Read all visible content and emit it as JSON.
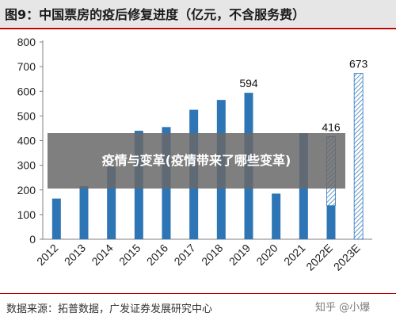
{
  "header": {
    "title": "图9：中国票房的疫后修复进度（亿元，不含服务费）"
  },
  "chart_data": {
    "type": "bar",
    "categories": [
      "2012",
      "2013",
      "2014",
      "2015",
      "2016",
      "2017",
      "2018",
      "2019",
      "2020",
      "2021",
      "2022E",
      "2023E"
    ],
    "values": [
      165,
      215,
      295,
      440,
      455,
      525,
      565,
      594,
      185,
      430,
      136,
      673
    ],
    "estimated_tail": {
      "2022E": 416
    },
    "data_labels": [
      {
        "category": "2019",
        "text": "594"
      },
      {
        "category": "2022E",
        "text": "416"
      },
      {
        "category": "2023E",
        "text": "673"
      }
    ],
    "ylim": [
      0,
      800
    ],
    "yticks": [
      0,
      100,
      200,
      300,
      400,
      500,
      600,
      700,
      800
    ],
    "grid": false,
    "colors": {
      "bar": "#2e75b6",
      "hatch": "#2e75b6",
      "axis": "#808080"
    }
  },
  "footer": {
    "source": "数据来源：拓普数据，广发证券发展研究中心",
    "watermark": "知乎 @小爆"
  },
  "overlay": {
    "text": "疫情与变革(疫情带来了哪些变革)"
  }
}
